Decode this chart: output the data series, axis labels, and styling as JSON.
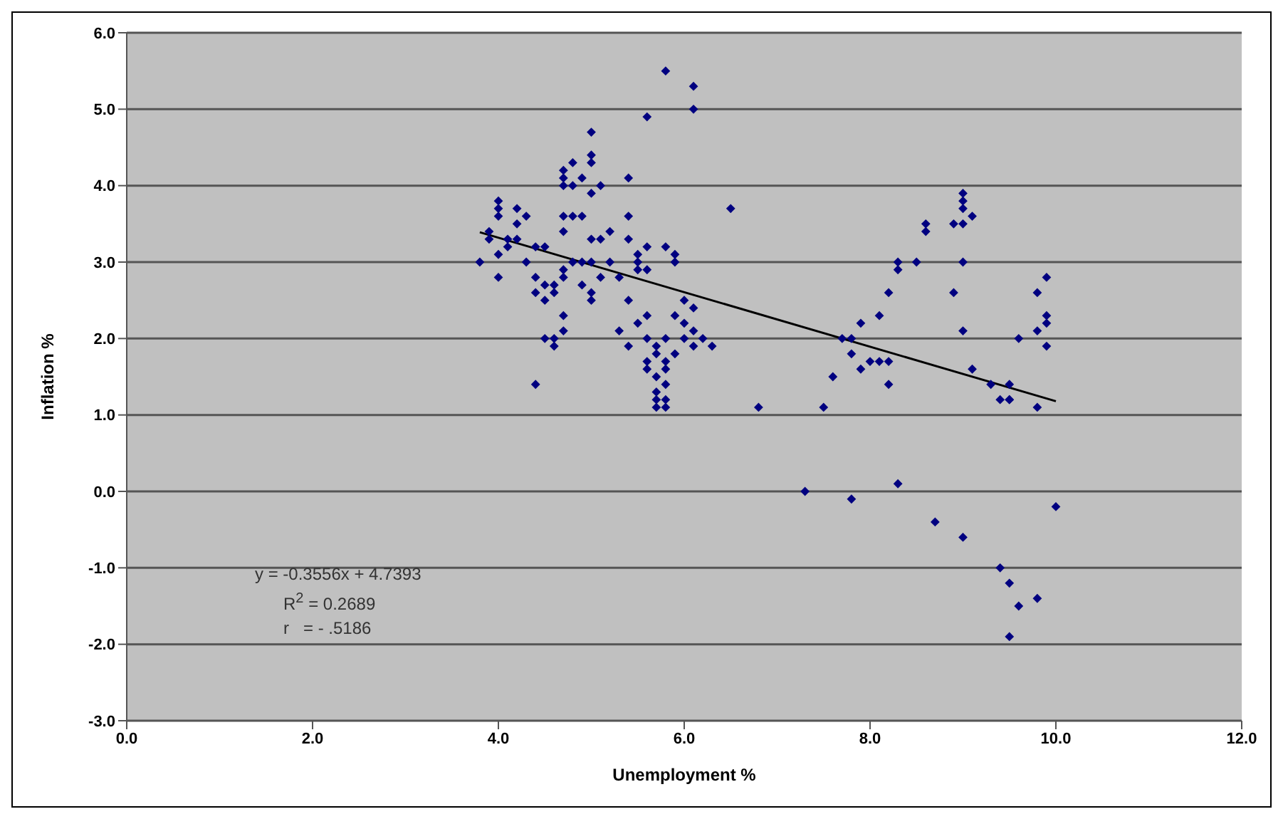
{
  "chart_data": {
    "type": "scatter",
    "xlabel": "Unemployment %",
    "ylabel": "Inflation %",
    "xlim": [
      0,
      12
    ],
    "xticks": [
      {
        "value": 0,
        "label": "0.0"
      },
      {
        "value": 2,
        "label": "2.0"
      },
      {
        "value": 4,
        "label": "4.0"
      },
      {
        "value": 6,
        "label": "6.0"
      },
      {
        "value": 8,
        "label": "8.0"
      },
      {
        "value": 10,
        "label": "10.0"
      },
      {
        "value": 12,
        "label": "12.0"
      }
    ],
    "ylim": [
      -3,
      6
    ],
    "yticks": [
      {
        "value": -3,
        "label": "-3.0"
      },
      {
        "value": -2,
        "label": "-2.0"
      },
      {
        "value": -1,
        "label": "-1.0"
      },
      {
        "value": 0,
        "label": "0.0"
      },
      {
        "value": 1,
        "label": "1.0"
      },
      {
        "value": 2,
        "label": "2.0"
      },
      {
        "value": 3,
        "label": "3.0"
      },
      {
        "value": 4,
        "label": "4.0"
      },
      {
        "value": 5,
        "label": "5.0"
      },
      {
        "value": 6,
        "label": "6.0"
      }
    ],
    "grid": "y",
    "legend": false,
    "series": [
      {
        "color": "#000080",
        "marker": "diamond",
        "x": [
          3.8,
          3.9,
          3.9,
          4.0,
          4.0,
          4.0,
          4.0,
          4.0,
          4.1,
          4.1,
          4.2,
          4.2,
          4.2,
          4.3,
          4.3,
          4.4,
          4.4,
          4.4,
          4.4,
          4.5,
          4.5,
          4.5,
          4.5,
          4.6,
          4.6,
          4.6,
          4.6,
          4.7,
          4.7,
          4.7,
          4.7,
          4.7,
          4.7,
          4.7,
          4.7,
          4.7,
          4.8,
          4.8,
          4.8,
          4.8,
          4.9,
          4.9,
          4.9,
          4.9,
          5.0,
          5.0,
          5.0,
          5.0,
          5.0,
          5.0,
          5.0,
          5.0,
          5.1,
          5.1,
          5.1,
          5.2,
          5.2,
          5.3,
          5.3,
          5.4,
          5.4,
          5.4,
          5.4,
          5.4,
          5.5,
          5.5,
          5.5,
          5.5,
          5.6,
          5.6,
          5.6,
          5.6,
          5.6,
          5.6,
          5.6,
          5.7,
          5.7,
          5.7,
          5.7,
          5.7,
          5.7,
          5.8,
          5.8,
          5.8,
          5.8,
          5.8,
          5.8,
          5.8,
          5.8,
          5.9,
          5.9,
          5.9,
          5.9,
          6.0,
          6.0,
          6.0,
          6.1,
          6.1,
          6.1,
          6.1,
          6.1,
          6.2,
          6.3,
          6.5,
          6.8,
          7.3,
          7.5,
          7.6,
          7.7,
          7.8,
          7.8,
          7.8,
          7.9,
          7.9,
          8.0,
          8.1,
          8.1,
          8.2,
          8.2,
          8.2,
          8.3,
          8.3,
          8.3,
          8.5,
          8.6,
          8.6,
          8.7,
          8.9,
          8.9,
          9.0,
          9.0,
          9.0,
          9.0,
          9.0,
          9.0,
          9.0,
          9.1,
          9.1,
          9.3,
          9.4,
          9.4,
          9.5,
          9.5,
          9.5,
          9.5,
          9.5,
          9.6,
          9.6,
          9.8,
          9.8,
          9.8,
          9.8,
          9.9,
          9.9,
          9.9,
          9.9,
          10.0
        ],
        "values": [
          3.0,
          3.4,
          3.3,
          3.6,
          3.7,
          3.8,
          3.1,
          2.8,
          3.3,
          3.2,
          3.7,
          3.5,
          3.3,
          3.6,
          3.0,
          2.8,
          2.6,
          3.2,
          1.4,
          3.2,
          2.5,
          2.0,
          2.7,
          2.6,
          2.0,
          1.9,
          2.7,
          4.0,
          4.2,
          4.1,
          3.6,
          3.4,
          2.9,
          2.8,
          2.3,
          2.1,
          4.3,
          4.0,
          3.6,
          3.0,
          3.6,
          3.0,
          4.1,
          2.7,
          4.7,
          4.4,
          4.3,
          3.9,
          3.3,
          3.0,
          2.6,
          2.5,
          4.0,
          3.3,
          2.8,
          3.4,
          3.0,
          2.8,
          2.1,
          4.1,
          3.6,
          3.3,
          2.5,
          1.9,
          3.1,
          3.0,
          2.9,
          2.2,
          4.9,
          3.2,
          2.9,
          1.7,
          1.6,
          2.3,
          2.0,
          1.2,
          1.5,
          1.9,
          1.1,
          1.3,
          1.8,
          5.5,
          3.2,
          2.0,
          1.7,
          1.4,
          1.1,
          1.2,
          1.6,
          3.1,
          3.0,
          2.3,
          1.8,
          2.5,
          2.2,
          2.0,
          5.3,
          5.0,
          2.4,
          2.1,
          1.9,
          2.0,
          1.9,
          3.7,
          1.1,
          0.0,
          1.1,
          1.5,
          2.0,
          1.8,
          2.0,
          -0.1,
          2.2,
          1.6,
          1.7,
          2.3,
          1.7,
          2.6,
          1.7,
          1.4,
          3.0,
          2.9,
          0.1,
          3.0,
          3.5,
          3.4,
          -0.4,
          2.6,
          3.5,
          3.9,
          3.8,
          3.7,
          3.5,
          3.0,
          2.1,
          -0.6,
          3.6,
          1.6,
          1.4,
          1.2,
          -1.0,
          1.4,
          1.2,
          1.2,
          -1.2,
          -1.9,
          2.0,
          -1.5,
          2.1,
          2.6,
          1.1,
          -1.4,
          2.8,
          2.2,
          2.3,
          1.9,
          -0.2
        ]
      },
      {
        "type": "line",
        "color": "#000000",
        "line_style": "solid",
        "marker": "none",
        "x": [
          3.8,
          10.0
        ],
        "values": [
          3.39,
          1.18
        ]
      }
    ],
    "annotations": [
      "y = -0.3556x + 4.7393",
      "R$^{2}$ = 0.2689",
      "r   = - .5186"
    ]
  }
}
